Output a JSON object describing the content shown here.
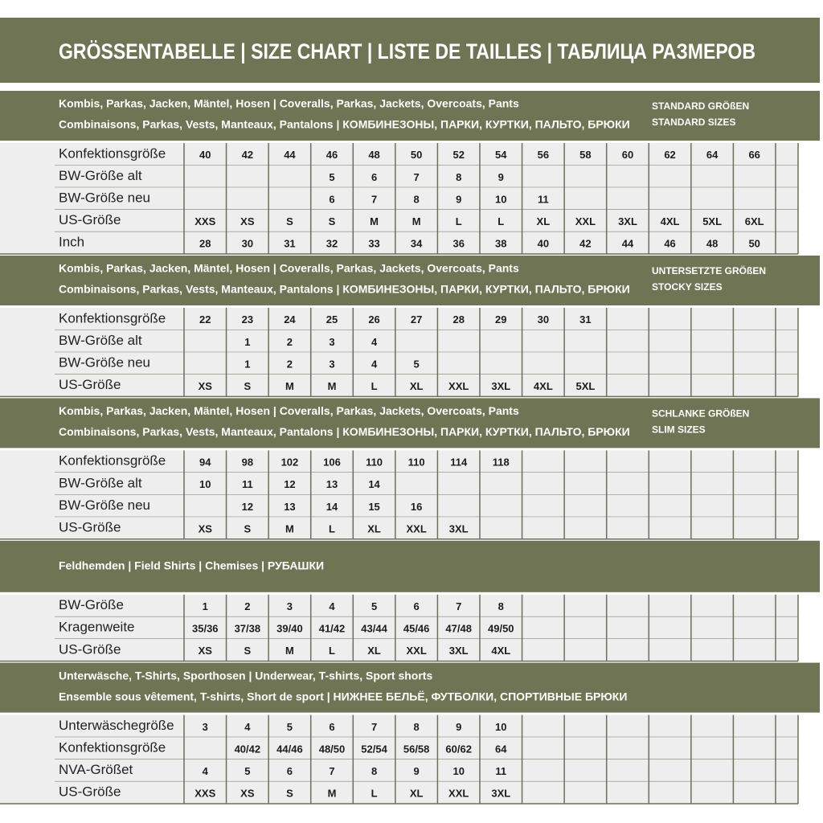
{
  "title": "GRÖSSENTABELLE | SIZE CHART | LISTE DE TAILLES | ТАБЛИЦА РАЗМЕРОВ",
  "sections": [
    {
      "header_lines": [
        "Kombis, Parkas, Jacken, Mäntel, Hosen | Coveralls, Parkas, Jackets, Overcoats, Pants",
        "Combinaisons, Parkas, Vests, Manteaux, Pantalons | КОМБИНЕЗОНЫ, ПАРКИ, КУРТКИ, ПАЛЬТО, БРЮКИ"
      ],
      "side_label": [
        "STANDARD GRÖßEN",
        "STANDARD SIZES"
      ],
      "rows": [
        {
          "label": "Konfektionsgröße",
          "cells": [
            "40",
            "42",
            "44",
            "46",
            "48",
            "50",
            "52",
            "54",
            "56",
            "58",
            "60",
            "62",
            "64",
            "66"
          ]
        },
        {
          "label": "BW-Größe alt",
          "cells": [
            null,
            null,
            null,
            "5",
            "6",
            "7",
            "8",
            "9"
          ]
        },
        {
          "label": "BW-Größe neu",
          "cells": [
            null,
            null,
            null,
            "6",
            "7",
            "8",
            "9",
            "10",
            "11"
          ]
        },
        {
          "label": "US-Größe",
          "cells": [
            "XXS",
            "XS",
            "S",
            "S",
            "M",
            "M",
            "L",
            "L",
            "XL",
            "XXL",
            "3XL",
            "4XL",
            "5XL",
            "6XL"
          ]
        },
        {
          "label": "Inch",
          "cells": [
            "28",
            "30",
            "31",
            "32",
            "33",
            "34",
            "36",
            "38",
            "40",
            "42",
            "44",
            "46",
            "48",
            "50"
          ]
        }
      ]
    },
    {
      "header_lines": [
        "Kombis, Parkas, Jacken, Mäntel, Hosen | Coveralls, Parkas, Jackets, Overcoats, Pants",
        "Combinaisons, Parkas, Vests, Manteaux, Pantalons | КОМБИНЕЗОНЫ, ПАРКИ, КУРТКИ, ПАЛЬТО, БРЮКИ"
      ],
      "side_label": [
        "UNTERSETZTE GRÖßEN",
        "STOCKY SIZES"
      ],
      "rows": [
        {
          "label": "Konfektionsgröße",
          "cells": [
            "22",
            "23",
            "24",
            "25",
            "26",
            "27",
            "28",
            "29",
            "30",
            "31"
          ]
        },
        {
          "label": "BW-Größe alt",
          "cells": [
            null,
            "1",
            "2",
            "3",
            "4"
          ]
        },
        {
          "label": "BW-Größe neu",
          "cells": [
            null,
            "1",
            "2",
            "3",
            "4",
            "5"
          ]
        },
        {
          "label": "US-Größe",
          "cells": [
            "XS",
            "S",
            "M",
            "M",
            "L",
            "XL",
            "XXL",
            "3XL",
            "4XL",
            "5XL"
          ]
        }
      ]
    },
    {
      "header_lines": [
        "Kombis, Parkas, Jacken, Mäntel, Hosen | Coveralls, Parkas, Jackets, Overcoats, Pants",
        "Combinaisons, Parkas, Vests, Manteaux, Pantalons | КОМБИНЕЗОНЫ, ПАРКИ, КУРТКИ, ПАЛЬТО, БРЮКИ"
      ],
      "side_label": [
        "SCHLANKE GRÖßEN",
        "SLIM SIZES"
      ],
      "rows": [
        {
          "label": "Konfektionsgröße",
          "cells": [
            "94",
            "98",
            "102",
            "106",
            "110",
            "110",
            "114",
            "118"
          ]
        },
        {
          "label": "BW-Größe alt",
          "cells": [
            "10",
            "11",
            "12",
            "13",
            "14"
          ]
        },
        {
          "label": "BW-Größe neu",
          "cells": [
            null,
            "12",
            "13",
            "14",
            "15",
            "16"
          ]
        },
        {
          "label": "US-Größe",
          "cells": [
            "XS",
            "S",
            "M",
            "L",
            "XL",
            "XXL",
            "3XL"
          ]
        }
      ]
    },
    {
      "header_lines": [
        "Feldhemden | Field Shirts | Chemises | РУБАШКИ"
      ],
      "rows": [
        {
          "label": "BW-Größe",
          "cells": [
            "1",
            "2",
            "3",
            "4",
            "5",
            "6",
            "7",
            "8"
          ]
        },
        {
          "label": "Kragenweite",
          "cells": [
            "35/36",
            "37/38",
            "39/40",
            "41/42",
            "43/44",
            "45/46",
            "47/48",
            "49/50"
          ]
        },
        {
          "label": "US-Größe",
          "cells": [
            "XS",
            "S",
            "M",
            "L",
            "XL",
            "XXL",
            "3XL",
            "4XL"
          ]
        }
      ]
    },
    {
      "header_lines": [
        "Unterwäsche, T-Shirts, Sporthosen | Underwear, T-shirts, Sport shorts",
        "Ensemble sous vêtement, T-shirts, Short de sport | НИЖНЕЕ БЕЛЬЁ, ФУТБОЛКИ, СПОРТИВНЫЕ БРЮКИ"
      ],
      "rows": [
        {
          "label": "Unterwäschegröße",
          "cells": [
            "3",
            "4",
            "5",
            "6",
            "7",
            "8",
            "9",
            "10"
          ]
        },
        {
          "label": "Konfektionsgröße",
          "cells": [
            null,
            "40/42",
            "44/46",
            "48/50",
            "52/54",
            "56/58",
            "60/62",
            "64"
          ]
        },
        {
          "label": "NVA-Größet",
          "cells": [
            "4",
            "5",
            "6",
            "7",
            "8",
            "9",
            "10",
            "11"
          ]
        },
        {
          "label": "US-Größe",
          "cells": [
            "XXS",
            "XS",
            "S",
            "M",
            "L",
            "XL",
            "XXL",
            "3XL"
          ]
        }
      ]
    }
  ]
}
